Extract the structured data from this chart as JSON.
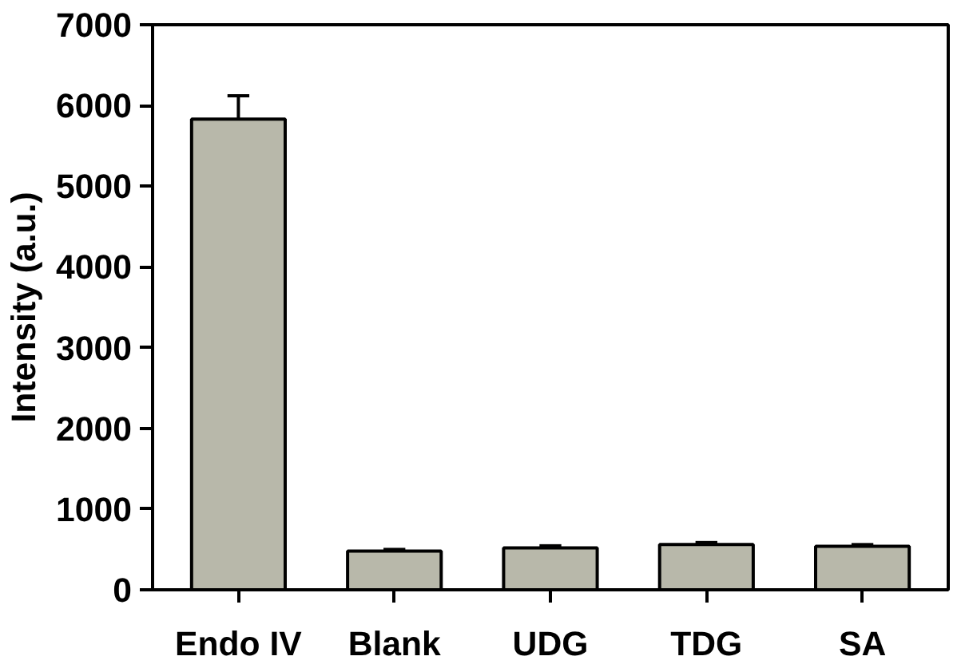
{
  "chart_data": {
    "type": "bar",
    "ylabel": "Intensity (a.u.)",
    "categories": [
      "Endo IV",
      "Blank",
      "UDG",
      "TDG",
      "SA"
    ],
    "values": [
      5830,
      480,
      520,
      560,
      540
    ],
    "errors": [
      [
        5830,
        6120
      ],
      [
        480,
        500
      ],
      [
        520,
        545
      ],
      [
        560,
        585
      ],
      [
        540,
        560
      ]
    ],
    "color": "#b8b8aa",
    "ylim": [
      0,
      7000
    ],
    "yticks": [
      0,
      1000,
      2000,
      3000,
      4000,
      5000,
      6000,
      7000
    ],
    "grid": false
  }
}
